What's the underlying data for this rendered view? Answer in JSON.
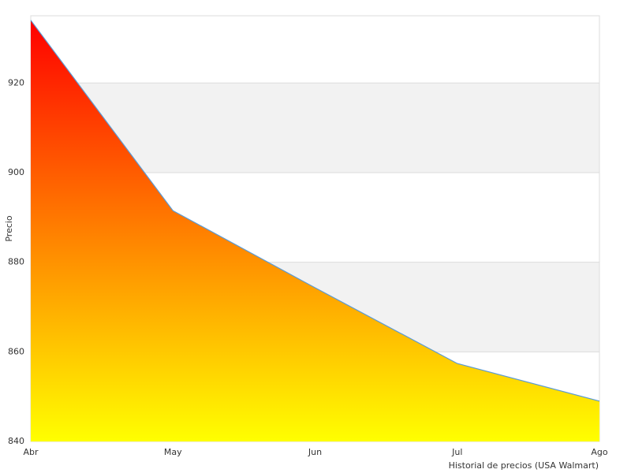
{
  "chart_data": {
    "type": "area",
    "x_label": "Historial de precios (USA Walmart)",
    "y_label": "Precio",
    "categories": [
      "Abr",
      "May",
      "Jun",
      "Jul",
      "Ago"
    ],
    "values": [
      934,
      891.5,
      874.3,
      857.4,
      849
    ],
    "color": "#5b9bd5",
    "gradient": [
      "#ff0000",
      "#ffff00"
    ],
    "ylim": [
      840,
      935
    ],
    "yticks": [
      840,
      860,
      880,
      900,
      920
    ],
    "grid": true,
    "band_color": "#f2f2f2"
  }
}
